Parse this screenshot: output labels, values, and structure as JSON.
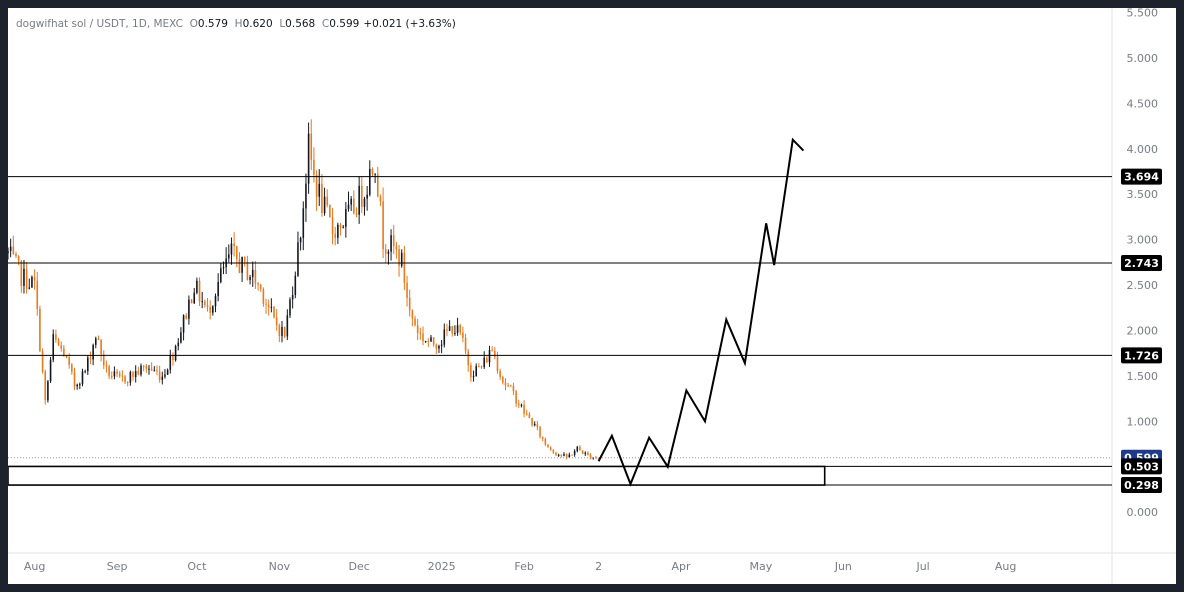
{
  "legend": {
    "symbol": "dogwifhat sol / USDT, 1D, MEXC",
    "open_label": "O",
    "open": "0.579",
    "high_label": "H",
    "high": "0.620",
    "low_label": "L",
    "low": "0.568",
    "close_label": "C",
    "close": "0.599",
    "change": "+0.021 (+3.63%)"
  },
  "colors": {
    "background": "#ffffff",
    "frame": "#1e222d",
    "up_candle": "#131722",
    "down_candle": "#e8791c",
    "axis_text": "#787b86",
    "drawing": "#000000",
    "price_tag": "#1e3a8a"
  },
  "chart_data": {
    "type": "candlestick",
    "ylim": [
      -0.45,
      5.55
    ],
    "y_ticks": [
      "0.000",
      "0.500",
      "1.000",
      "1.500",
      "2.000",
      "2.500",
      "3.000",
      "3.500",
      "4.000",
      "4.500",
      "5.000",
      "5.500"
    ],
    "x_ticks": [
      "Aug",
      "Sep",
      "Oct",
      "Nov",
      "Dec",
      "2025",
      "Feb",
      "2",
      "Apr",
      "May",
      "Jun",
      "Jul",
      "Aug"
    ],
    "x_range": [
      "2024-07-22",
      "2025-09-10"
    ],
    "candles_range": [
      "2024-07-22",
      "2025-03-01"
    ],
    "price_path": [
      [
        "2024-07-22",
        2.85
      ],
      [
        "2024-07-27",
        2.6
      ],
      [
        "2024-08-01",
        2.5
      ],
      [
        "2024-08-05",
        1.2
      ],
      [
        "2024-08-08",
        1.9
      ],
      [
        "2024-08-12",
        1.75
      ],
      [
        "2024-08-16",
        1.4
      ],
      [
        "2024-08-20",
        1.55
      ],
      [
        "2024-08-24",
        1.95
      ],
      [
        "2024-08-28",
        1.55
      ],
      [
        "2024-09-02",
        1.45
      ],
      [
        "2024-09-06",
        1.5
      ],
      [
        "2024-09-12",
        1.6
      ],
      [
        "2024-09-18",
        1.5
      ],
      [
        "2024-09-22",
        1.75
      ],
      [
        "2024-09-26",
        2.1
      ],
      [
        "2024-09-30",
        2.5
      ],
      [
        "2024-10-05",
        2.2
      ],
      [
        "2024-10-10",
        2.6
      ],
      [
        "2024-10-14",
        2.85
      ],
      [
        "2024-10-18",
        2.7
      ],
      [
        "2024-10-22",
        2.6
      ],
      [
        "2024-10-26",
        2.4
      ],
      [
        "2024-10-30",
        2.1
      ],
      [
        "2024-11-03",
        1.95
      ],
      [
        "2024-11-06",
        2.5
      ],
      [
        "2024-11-09",
        3.1
      ],
      [
        "2024-11-12",
        4.0
      ],
      [
        "2024-11-14",
        3.7
      ],
      [
        "2024-11-17",
        3.4
      ],
      [
        "2024-11-21",
        3.1
      ],
      [
        "2024-11-25",
        3.2
      ],
      [
        "2024-11-29",
        3.35
      ],
      [
        "2024-12-03",
        3.55
      ],
      [
        "2024-12-07",
        3.9
      ],
      [
        "2024-12-10",
        3.0
      ],
      [
        "2024-12-14",
        2.9
      ],
      [
        "2024-12-17",
        2.75
      ],
      [
        "2024-12-20",
        2.2
      ],
      [
        "2024-12-24",
        1.95
      ],
      [
        "2024-12-28",
        1.85
      ],
      [
        "2025-01-01",
        1.9
      ],
      [
        "2025-01-05",
        2.05
      ],
      [
        "2025-01-08",
        1.95
      ],
      [
        "2025-01-12",
        1.55
      ],
      [
        "2025-01-16",
        1.6
      ],
      [
        "2025-01-20",
        1.8
      ],
      [
        "2025-01-24",
        1.45
      ],
      [
        "2025-01-28",
        1.3
      ],
      [
        "2025-02-01",
        1.1
      ],
      [
        "2025-02-05",
        0.95
      ],
      [
        "2025-02-09",
        0.75
      ],
      [
        "2025-02-13",
        0.65
      ],
      [
        "2025-02-17",
        0.6
      ],
      [
        "2025-02-21",
        0.7
      ],
      [
        "2025-02-25",
        0.62
      ],
      [
        "2025-03-01",
        0.599
      ]
    ],
    "horizontal_levels": [
      3.694,
      2.743,
      1.726
    ],
    "last_price": 0.599,
    "zone": {
      "top": 0.503,
      "bottom": 0.298,
      "x_end": "2025-05-25"
    },
    "price_labels": [
      "3.694",
      "2.743",
      "1.726",
      "0.599",
      "0.503",
      "0.298"
    ],
    "projection_path": [
      [
        "2025-03-01",
        0.56
      ],
      [
        "2025-03-06",
        0.84
      ],
      [
        "2025-03-13",
        0.31
      ],
      [
        "2025-03-20",
        0.82
      ],
      [
        "2025-03-27",
        0.5
      ],
      [
        "2025-04-03",
        1.34
      ],
      [
        "2025-04-10",
        1.0
      ],
      [
        "2025-04-18",
        2.12
      ],
      [
        "2025-04-25",
        1.64
      ],
      [
        "2025-05-03",
        3.18
      ],
      [
        "2025-05-06",
        2.72
      ],
      [
        "2025-05-13",
        4.1
      ],
      [
        "2025-05-17",
        3.98
      ]
    ]
  }
}
